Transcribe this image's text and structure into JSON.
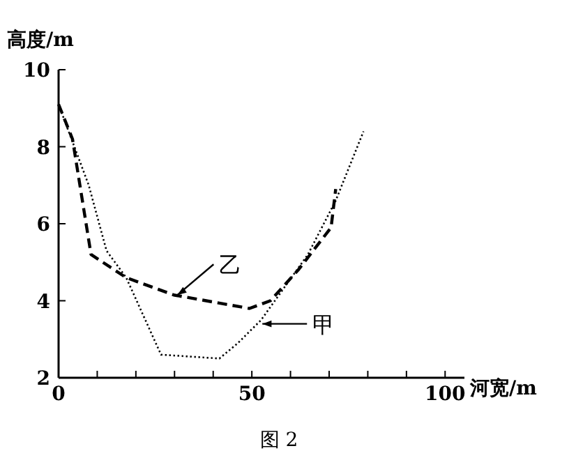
{
  "chart_data": {
    "type": "line",
    "title": "图 2",
    "xlabel": "河宽/m",
    "ylabel": "高度/m",
    "xlim": [
      0,
      105
    ],
    "ylim": [
      2,
      10
    ],
    "xticks": [
      0,
      {
        "value": 10,
        "label": null
      },
      {
        "value": 20,
        "label": null
      },
      {
        "value": 30,
        "label": null
      },
      {
        "value": 40,
        "label": null
      },
      50,
      {
        "value": 60,
        "label": null
      },
      {
        "value": 70,
        "label": null
      },
      {
        "value": 80,
        "label": null
      },
      {
        "value": 90,
        "label": null
      },
      100
    ],
    "yticks": [
      2,
      4,
      6,
      8,
      10
    ],
    "grid": false,
    "marker": "none",
    "series": [
      {
        "color": "#000000",
        "line_style": "dotted",
        "x": [
          0,
          7.8,
          12.4,
          17.5,
          26.5,
          41.6,
          46.4,
          52.4,
          64.5,
          71.7,
          78.9
        ],
        "values": [
          9.1,
          7.0,
          5.3,
          4.6,
          2.6,
          2.5,
          2.9,
          3.5,
          5.2,
          6.6,
          8.4
        ]
      },
      {
        "color": "#000000",
        "line_style": "dashed",
        "x": [
          0,
          3.6,
          8.4,
          17.5,
          29.8,
          49.4,
          54.8,
          62,
          70.5,
          71.7
        ],
        "values": [
          9.1,
          8.2,
          5.2,
          4.6,
          4.15,
          3.8,
          4.0,
          4.8,
          5.9,
          6.9
        ]
      }
    ],
    "annotations": [
      {
        "text": "乙",
        "x": 30,
        "y": 4.15
      },
      {
        "text": "甲",
        "x": 52,
        "y": 3.4
      }
    ]
  }
}
